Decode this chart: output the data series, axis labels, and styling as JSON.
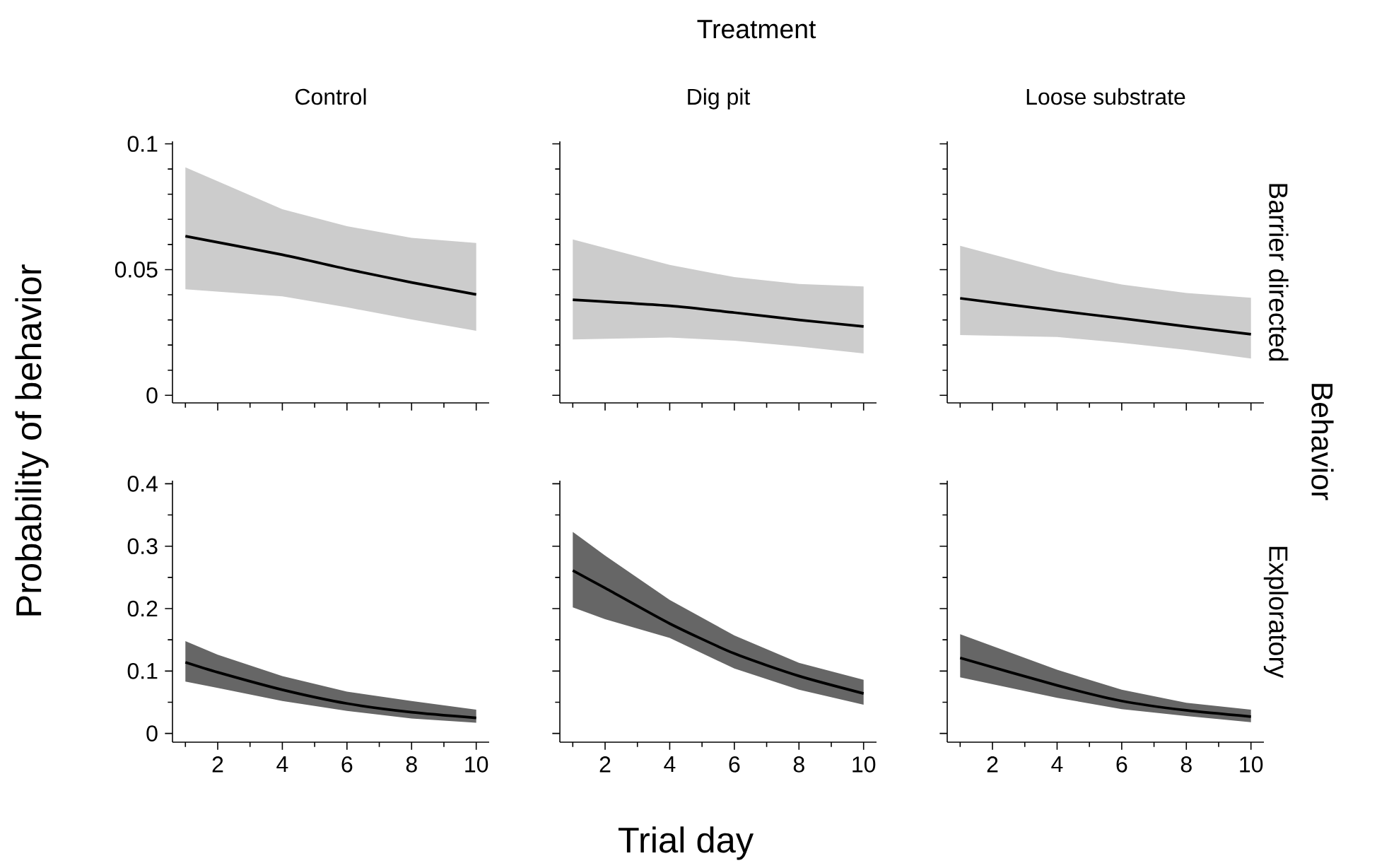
{
  "chart_data": [
    {
      "type": "line",
      "title": "Control",
      "ylabel": "Probability of behavior",
      "annotations": [
        "Treatment",
        "Behavior"
      ],
      "x": [
        1,
        4,
        6,
        8,
        10
      ],
      "series": [
        {
          "color": "#000000",
          "values": [
            0.0633,
            0.0559,
            0.0502,
            0.0449,
            0.0401
          ],
          "lower": [
            0.0422,
            0.0394,
            0.035,
            0.0302,
            0.0257
          ],
          "upper": [
            0.0907,
            0.074,
            0.0673,
            0.0626,
            0.0606
          ]
        }
      ],
      "xlim": [
        0.6,
        10.4
      ],
      "xticks": [
        {
          "value": 1,
          "label": null
        },
        2,
        {
          "value": 3,
          "label": null
        },
        4,
        {
          "value": 5,
          "label": null
        },
        6,
        {
          "value": 7,
          "label": null
        },
        8,
        {
          "value": 9,
          "label": null
        },
        10
      ],
      "ylim": [
        -0.003,
        0.101
      ],
      "yticks": [
        0,
        {
          "value": 0.01,
          "label": null
        },
        {
          "value": 0.02,
          "label": null
        },
        {
          "value": 0.03,
          "label": null
        },
        {
          "value": 0.04,
          "label": null
        },
        0.05,
        {
          "value": 0.06,
          "label": null
        },
        {
          "value": 0.07,
          "label": null
        },
        {
          "value": 0.08,
          "label": null
        },
        {
          "value": 0.09,
          "label": null
        },
        0.1
      ],
      "tick_labels": "y",
      "grid": false,
      "marker": "none",
      "line_style": "solid"
    },
    {
      "type": "line",
      "title": "Dig pit",
      "x": [
        1,
        4,
        6,
        8,
        10
      ],
      "series": [
        {
          "color": "#000000",
          "values": [
            0.038,
            0.0356,
            0.0329,
            0.03,
            0.0274
          ],
          "lower": [
            0.0222,
            0.023,
            0.0217,
            0.0194,
            0.0167
          ],
          "upper": [
            0.062,
            0.0519,
            0.047,
            0.0443,
            0.0433
          ]
        }
      ],
      "xlim": [
        0.6,
        10.4
      ],
      "xticks": [
        {
          "value": 1,
          "label": null
        },
        2,
        {
          "value": 3,
          "label": null
        },
        4,
        {
          "value": 5,
          "label": null
        },
        6,
        {
          "value": 7,
          "label": null
        },
        8,
        {
          "value": 9,
          "label": null
        },
        10
      ],
      "ylim": [
        -0.003,
        0.101
      ],
      "yticks": [
        0,
        {
          "value": 0.01,
          "label": null
        },
        {
          "value": 0.02,
          "label": null
        },
        {
          "value": 0.03,
          "label": null
        },
        {
          "value": 0.04,
          "label": null
        },
        0.05,
        {
          "value": 0.06,
          "label": null
        },
        {
          "value": 0.07,
          "label": null
        },
        {
          "value": 0.08,
          "label": null
        },
        {
          "value": 0.09,
          "label": null
        },
        0.1
      ],
      "tick_labels": false,
      "grid": false,
      "marker": "none",
      "line_style": "solid"
    },
    {
      "type": "line",
      "title": "Loose substrate",
      "y2label": "Barrier directed",
      "x": [
        1,
        4,
        6,
        8,
        10
      ],
      "series": [
        {
          "color": "#000000",
          "values": [
            0.0386,
            0.0337,
            0.0306,
            0.0274,
            0.0243
          ],
          "lower": [
            0.024,
            0.0232,
            0.0209,
            0.0181,
            0.0146
          ],
          "upper": [
            0.0595,
            0.0492,
            0.0441,
            0.0407,
            0.0388
          ]
        }
      ],
      "xlim": [
        0.6,
        10.4
      ],
      "xticks": [
        {
          "value": 1,
          "label": null
        },
        2,
        {
          "value": 3,
          "label": null
        },
        4,
        {
          "value": 5,
          "label": null
        },
        6,
        {
          "value": 7,
          "label": null
        },
        8,
        {
          "value": 9,
          "label": null
        },
        10
      ],
      "ylim": [
        -0.003,
        0.101
      ],
      "yticks": [
        0,
        {
          "value": 0.01,
          "label": null
        },
        {
          "value": 0.02,
          "label": null
        },
        {
          "value": 0.03,
          "label": null
        },
        {
          "value": 0.04,
          "label": null
        },
        0.05,
        {
          "value": 0.06,
          "label": null
        },
        {
          "value": 0.07,
          "label": null
        },
        {
          "value": 0.08,
          "label": null
        },
        {
          "value": 0.09,
          "label": null
        },
        0.1
      ],
      "tick_labels": false,
      "grid": false,
      "marker": "none",
      "line_style": "solid"
    },
    {
      "type": "line",
      "x": [
        1,
        2,
        4,
        6,
        8,
        10
      ],
      "series": [
        {
          "color": "#000000",
          "values": [
            0.114,
            0.098,
            0.07,
            0.048,
            0.034,
            0.025
          ],
          "lower": [
            0.083,
            0.073,
            0.052,
            0.036,
            0.024,
            0.017
          ],
          "upper": [
            0.148,
            0.126,
            0.092,
            0.067,
            0.052,
            0.038
          ]
        }
      ],
      "xlim": [
        0.6,
        10.4
      ],
      "xticks": [
        {
          "value": 1,
          "label": null
        },
        2,
        {
          "value": 3,
          "label": null
        },
        4,
        {
          "value": 5,
          "label": null
        },
        6,
        {
          "value": 7,
          "label": null
        },
        8,
        {
          "value": 9,
          "label": null
        },
        10
      ],
      "ylim": [
        -0.014,
        0.405
      ],
      "yticks": [
        0,
        {
          "value": 0.05,
          "label": null
        },
        0.1,
        {
          "value": 0.15,
          "label": null
        },
        0.2,
        {
          "value": 0.25,
          "label": null
        },
        0.3,
        {
          "value": 0.35,
          "label": null
        },
        0.4
      ],
      "grid": false,
      "marker": "none",
      "line_style": "solid"
    },
    {
      "type": "line",
      "xlabel": "Trial day",
      "x": [
        1,
        2,
        4,
        6,
        8,
        10
      ],
      "series": [
        {
          "color": "#000000",
          "values": [
            0.261,
            0.233,
            0.176,
            0.128,
            0.092,
            0.064
          ],
          "lower": [
            0.202,
            0.183,
            0.153,
            0.104,
            0.07,
            0.046
          ],
          "upper": [
            0.323,
            0.285,
            0.214,
            0.157,
            0.113,
            0.086
          ]
        }
      ],
      "xlim": [
        0.6,
        10.4
      ],
      "xticks": [
        {
          "value": 1,
          "label": null
        },
        2,
        {
          "value": 3,
          "label": null
        },
        4,
        {
          "value": 5,
          "label": null
        },
        6,
        {
          "value": 7,
          "label": null
        },
        8,
        {
          "value": 9,
          "label": null
        },
        10
      ],
      "ylim": [
        -0.014,
        0.405
      ],
      "yticks": [
        0,
        {
          "value": 0.05,
          "label": null
        },
        0.1,
        {
          "value": 0.15,
          "label": null
        },
        0.2,
        {
          "value": 0.25,
          "label": null
        },
        0.3,
        {
          "value": 0.35,
          "label": null
        },
        0.4
      ],
      "tick_labels": "x",
      "grid": false,
      "marker": "none",
      "line_style": "solid"
    },
    {
      "type": "line",
      "y2label": "Exploratory",
      "x": [
        1,
        4,
        6,
        8,
        10
      ],
      "series": [
        {
          "color": "#000000",
          "values": [
            0.121,
            0.077,
            0.052,
            0.037,
            0.027
          ],
          "lower": [
            0.09,
            0.057,
            0.039,
            0.028,
            0.018
          ],
          "upper": [
            0.159,
            0.102,
            0.07,
            0.049,
            0.038
          ]
        }
      ],
      "xlim": [
        0.6,
        10.4
      ],
      "xticks": [
        {
          "value": 1,
          "label": null
        },
        2,
        {
          "value": 3,
          "label": null
        },
        4,
        {
          "value": 5,
          "label": null
        },
        6,
        {
          "value": 7,
          "label": null
        },
        8,
        {
          "value": 9,
          "label": null
        },
        10
      ],
      "ylim": [
        -0.014,
        0.405
      ],
      "yticks": [
        0,
        {
          "value": 0.05,
          "label": null
        },
        0.1,
        {
          "value": 0.15,
          "label": null
        },
        0.2,
        {
          "value": 0.25,
          "label": null
        },
        0.3,
        {
          "value": 0.35,
          "label": null
        },
        0.4
      ],
      "tick_labels": "x",
      "grid": false,
      "marker": "none",
      "line_style": "solid"
    }
  ]
}
